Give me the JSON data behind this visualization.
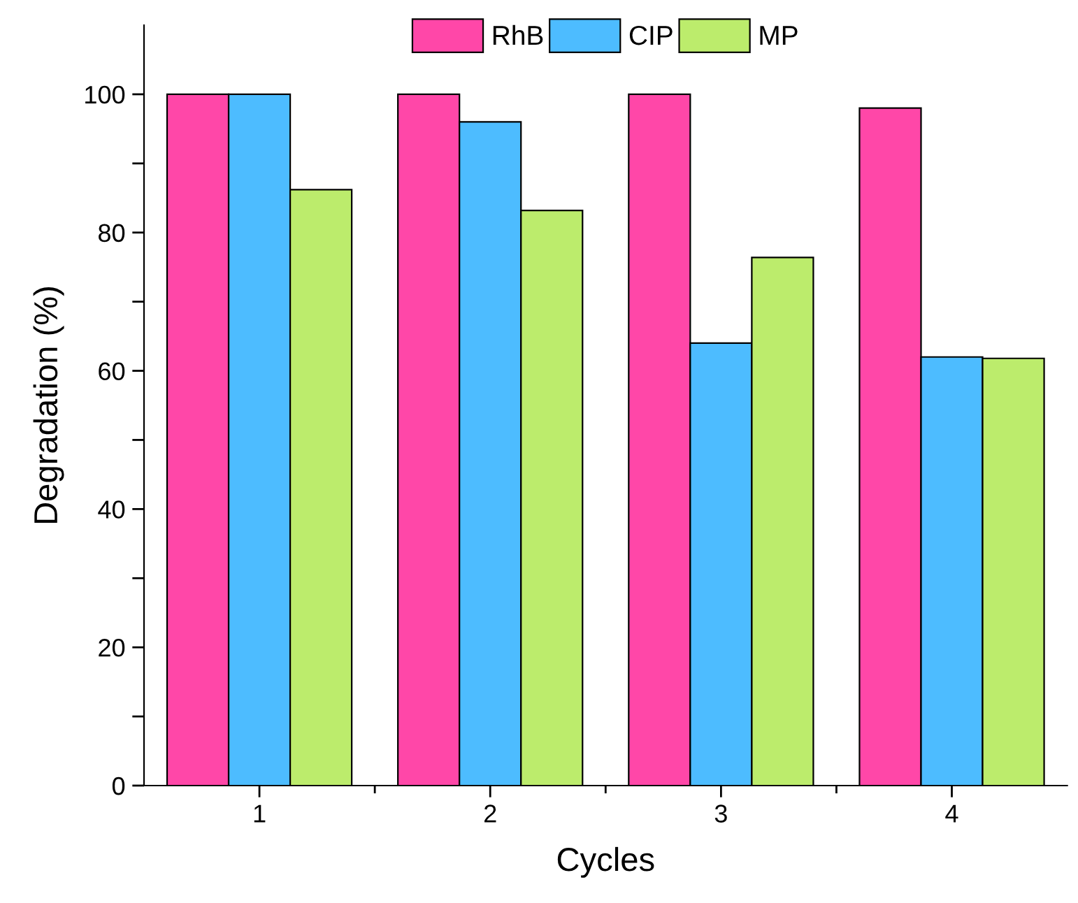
{
  "chart_data": {
    "type": "bar",
    "xlabel": "Cycles",
    "ylabel": "Degradation (%)",
    "categories": [
      "1",
      "2",
      "3",
      "4"
    ],
    "series": [
      {
        "name": "RhB",
        "color": "#ff47a8",
        "values": [
          100,
          100,
          100,
          98
        ]
      },
      {
        "name": "CIP",
        "color": "#4dbcff",
        "values": [
          100,
          96,
          64,
          62
        ]
      },
      {
        "name": "MP",
        "color": "#bcec6c",
        "values": [
          86.2,
          83.2,
          76.4,
          61.8
        ]
      }
    ],
    "ylim": [
      0,
      110
    ],
    "yticks": [
      0,
      {
        "value": 10,
        "label": null
      },
      20,
      {
        "value": 30,
        "label": null
      },
      40,
      {
        "value": 50,
        "label": null
      },
      60,
      {
        "value": 70,
        "label": null
      },
      80,
      {
        "value": 90,
        "label": null
      },
      100
    ],
    "grid": false,
    "legend": "top"
  }
}
